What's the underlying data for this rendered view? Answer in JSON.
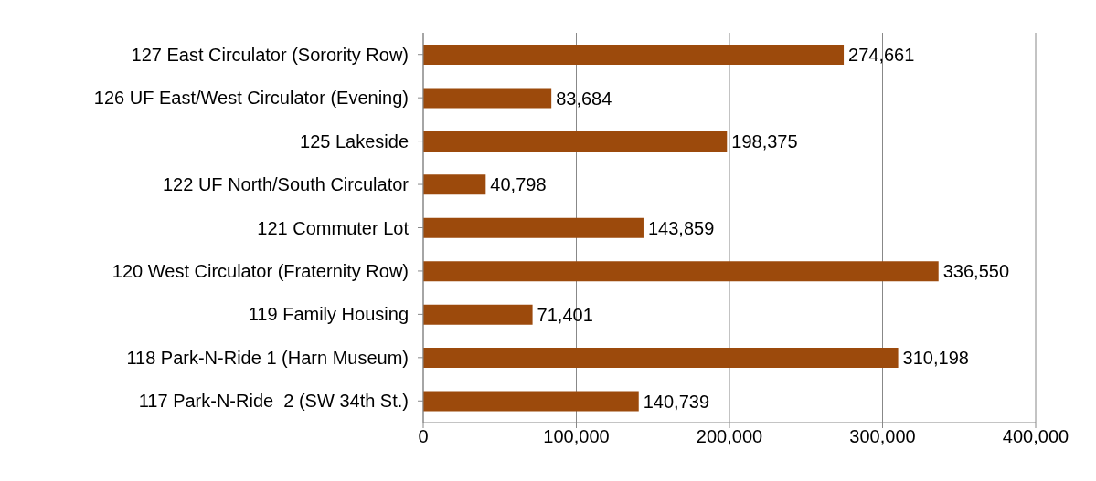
{
  "chart_data": {
    "type": "bar",
    "orientation": "horizontal",
    "categories": [
      "127 East Circulator (Sorority Row)",
      "126 UF East/West Circulator (Evening)",
      "125 Lakeside",
      "122 UF North/South Circulator",
      "121 Commuter Lot",
      "120 West Circulator (Fraternity Row)",
      "119 Family Housing",
      "118 Park-N-Ride 1 (Harn Museum)",
      "117 Park-N-Ride  2 (SW 34th St.)"
    ],
    "values": [
      274661,
      83684,
      198375,
      40798,
      143859,
      336550,
      71401,
      310198,
      140739
    ],
    "color": "#9c4a0c",
    "xlim": [
      0,
      400000
    ],
    "xticks": [
      {
        "value": 0,
        "label": "0"
      },
      {
        "value": 100000,
        "label": "100,000"
      },
      {
        "value": 200000,
        "label": "200,000"
      },
      {
        "value": 300000,
        "label": "300,000"
      },
      {
        "value": 400000,
        "label": "400,000"
      }
    ],
    "value_labels": [
      "274,661",
      "83,684",
      "198,375",
      "40,798",
      "143,859",
      "336,550",
      "71,401",
      "310,198",
      "140,739"
    ],
    "grid": "x"
  }
}
